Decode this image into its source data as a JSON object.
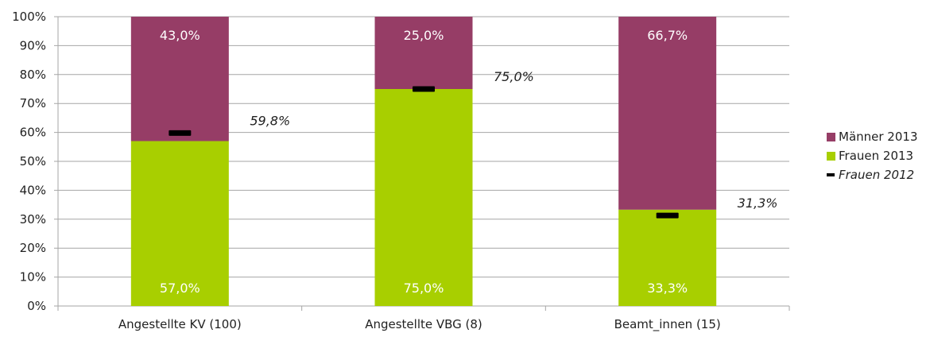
{
  "chart_data": {
    "type": "bar",
    "stacked": true,
    "percent": true,
    "categories": [
      "Angestellte KV (100)",
      "Angestellte VBG (8)",
      "Beamt_innen (15)"
    ],
    "series": [
      {
        "name": "Frauen 2013",
        "values": [
          57.0,
          75.0,
          33.3
        ],
        "labels": [
          "57,0%",
          "75,0%",
          "33,3%"
        ],
        "color": "#a8cf00"
      },
      {
        "name": "Männer 2013",
        "values": [
          43.0,
          25.0,
          66.7
        ],
        "labels": [
          "43,0%",
          "25,0%",
          "66,7%"
        ],
        "color": "#963d66"
      }
    ],
    "markers": {
      "name": "Frauen 2012",
      "values": [
        59.8,
        75.0,
        31.3
      ],
      "labels": [
        "59,8%",
        "75,0%",
        "31,3%"
      ],
      "color": "#000000"
    },
    "y_ticks": [
      "0%",
      "10%",
      "20%",
      "30%",
      "40%",
      "50%",
      "60%",
      "70%",
      "80%",
      "90%",
      "100%"
    ],
    "ylim": [
      0,
      100
    ],
    "grid": true,
    "legend_position": "right"
  },
  "legend": {
    "maenner": "Männer 2013",
    "frauen": "Frauen 2013",
    "frauen2012": "Frauen 2012"
  },
  "colors": {
    "frauen": "#a8cf00",
    "maenner": "#963d66",
    "marker": "#000000",
    "grid": "#a6a6a6"
  }
}
